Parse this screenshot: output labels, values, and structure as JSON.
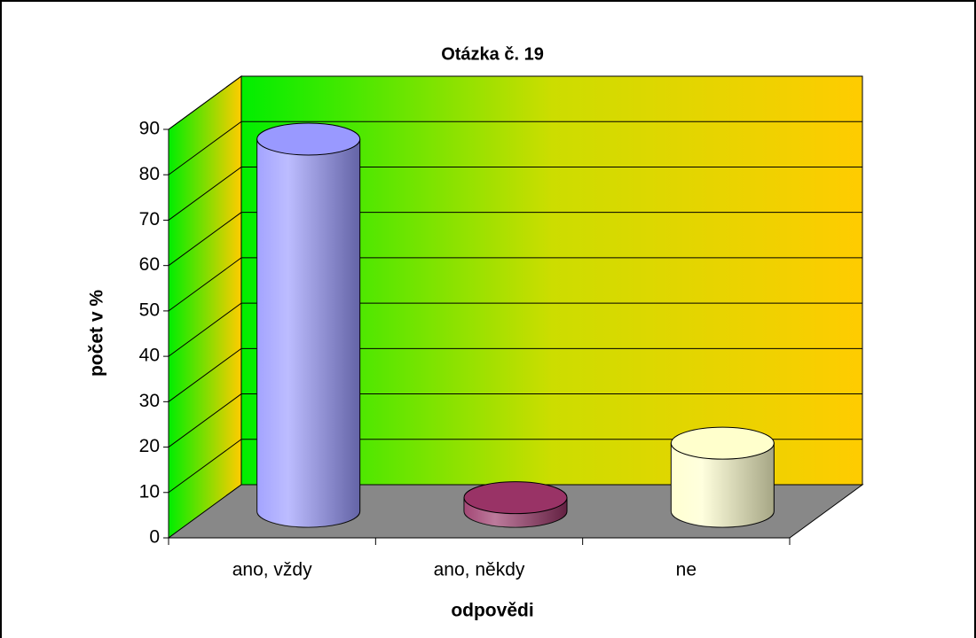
{
  "chart_data": {
    "type": "bar",
    "title": "Otázka č. 19",
    "categories": [
      "ano, vždy",
      "ano, někdy",
      "ne"
    ],
    "values": [
      82,
      3,
      15
    ],
    "colors": [
      "#9999ff",
      "#993366",
      "#ffffcc"
    ],
    "ylim": [
      0,
      90
    ],
    "yticks": [
      0,
      10,
      20,
      30,
      40,
      50,
      60,
      70,
      80,
      90
    ],
    "x_label": "odpovědi",
    "y_label": "počet v %",
    "grid": true
  }
}
